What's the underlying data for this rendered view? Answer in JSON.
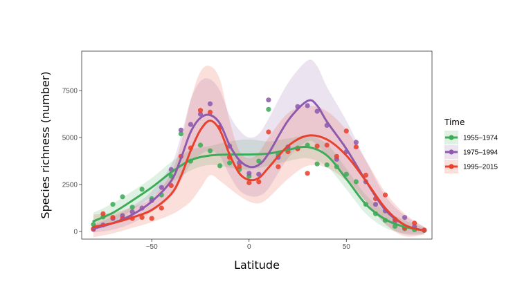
{
  "chart_data": {
    "type": "scatter",
    "title": "",
    "xlabel": "Latitude",
    "ylabel": "Species richness (number)",
    "xlim": [
      -86,
      94
    ],
    "ylim": [
      -400,
      9600
    ],
    "x_ticks": [
      -50,
      0,
      50
    ],
    "x_tick_labels": [
      "−50",
      "0",
      "50"
    ],
    "y_ticks": [
      0,
      2500,
      5000,
      7500
    ],
    "y_tick_labels": [
      "0",
      "2500",
      "5000",
      "7500"
    ],
    "legend": {
      "title": "Time",
      "position": "right"
    },
    "series": [
      {
        "name": "1955–1974",
        "color": "#3cac58",
        "points": [
          [
            -80,
            380
          ],
          [
            -75,
            780
          ],
          [
            -70,
            1450
          ],
          [
            -65,
            1850
          ],
          [
            -60,
            1300
          ],
          [
            -55,
            2250
          ],
          [
            -50,
            1750
          ],
          [
            -45,
            1950
          ],
          [
            -40,
            2950
          ],
          [
            -35,
            5200
          ],
          [
            -30,
            3750
          ],
          [
            -25,
            4600
          ],
          [
            -20,
            4300
          ],
          [
            -15,
            3500
          ],
          [
            -10,
            3650
          ],
          [
            -5,
            3300
          ],
          [
            0,
            2950
          ],
          [
            5,
            3750
          ],
          [
            10,
            6500
          ],
          [
            15,
            4100
          ],
          [
            20,
            4400
          ],
          [
            25,
            4450
          ],
          [
            30,
            4600
          ],
          [
            35,
            3600
          ],
          [
            40,
            3550
          ],
          [
            45,
            3450
          ],
          [
            50,
            3050
          ],
          [
            55,
            2650
          ],
          [
            60,
            1450
          ],
          [
            65,
            950
          ],
          [
            70,
            600
          ],
          [
            75,
            280
          ],
          [
            80,
            150
          ],
          [
            85,
            100
          ],
          [
            90,
            60
          ]
        ],
        "smooth": [
          [
            -80,
            550
          ],
          [
            -70,
            1000
          ],
          [
            -60,
            1650
          ],
          [
            -50,
            2350
          ],
          [
            -40,
            3150
          ],
          [
            -30,
            3800
          ],
          [
            -20,
            4050
          ],
          [
            -10,
            4100
          ],
          [
            0,
            4100
          ],
          [
            10,
            4150
          ],
          [
            20,
            4350
          ],
          [
            30,
            4500
          ],
          [
            40,
            4050
          ],
          [
            50,
            2800
          ],
          [
            60,
            1450
          ],
          [
            70,
            650
          ],
          [
            80,
            250
          ],
          [
            90,
            60
          ]
        ],
        "band_upper": [
          [
            -80,
            1000
          ],
          [
            -70,
            1500
          ],
          [
            -60,
            2150
          ],
          [
            -50,
            2850
          ],
          [
            -40,
            3700
          ],
          [
            -30,
            4350
          ],
          [
            -20,
            4550
          ],
          [
            -10,
            4800
          ],
          [
            0,
            4900
          ],
          [
            10,
            4800
          ],
          [
            20,
            4950
          ],
          [
            30,
            5100
          ],
          [
            40,
            4650
          ],
          [
            50,
            3350
          ],
          [
            60,
            1950
          ],
          [
            70,
            1100
          ],
          [
            80,
            600
          ],
          [
            90,
            200
          ]
        ],
        "band_lower": [
          [
            -80,
            80
          ],
          [
            -70,
            500
          ],
          [
            -60,
            1150
          ],
          [
            -50,
            1850
          ],
          [
            -40,
            2600
          ],
          [
            -30,
            3250
          ],
          [
            -20,
            3550
          ],
          [
            -10,
            3400
          ],
          [
            0,
            3300
          ],
          [
            10,
            3500
          ],
          [
            20,
            3750
          ],
          [
            30,
            3900
          ],
          [
            40,
            3450
          ],
          [
            50,
            2250
          ],
          [
            60,
            950
          ],
          [
            70,
            200
          ],
          [
            80,
            -100
          ],
          [
            90,
            -100
          ]
        ]
      },
      {
        "name": "1975–1994",
        "color": "#8e5aae",
        "points": [
          [
            -80,
            120
          ],
          [
            -75,
            350
          ],
          [
            -70,
            700
          ],
          [
            -65,
            850
          ],
          [
            -60,
            1050
          ],
          [
            -55,
            1250
          ],
          [
            -50,
            1650
          ],
          [
            -45,
            2350
          ],
          [
            -40,
            3300
          ],
          [
            -35,
            5400
          ],
          [
            -30,
            5700
          ],
          [
            -25,
            6250
          ],
          [
            -20,
            6800
          ],
          [
            -15,
            5550
          ],
          [
            -10,
            4550
          ],
          [
            -5,
            3650
          ],
          [
            0,
            3100
          ],
          [
            5,
            3050
          ],
          [
            10,
            7000
          ],
          [
            15,
            3950
          ],
          [
            20,
            4500
          ],
          [
            25,
            6650
          ],
          [
            30,
            6700
          ],
          [
            35,
            6400
          ],
          [
            40,
            5650
          ],
          [
            45,
            3850
          ],
          [
            50,
            4250
          ],
          [
            55,
            4750
          ],
          [
            60,
            2650
          ],
          [
            65,
            1450
          ],
          [
            70,
            1100
          ],
          [
            75,
            550
          ],
          [
            80,
            750
          ],
          [
            85,
            250
          ],
          [
            90,
            70
          ]
        ],
        "smooth": [
          [
            -80,
            150
          ],
          [
            -70,
            450
          ],
          [
            -60,
            900
          ],
          [
            -50,
            1600
          ],
          [
            -40,
            2700
          ],
          [
            -35,
            3900
          ],
          [
            -30,
            5300
          ],
          [
            -25,
            6050
          ],
          [
            -20,
            6200
          ],
          [
            -15,
            5750
          ],
          [
            -10,
            4600
          ],
          [
            -5,
            3800
          ],
          [
            0,
            3450
          ],
          [
            5,
            3550
          ],
          [
            10,
            4150
          ],
          [
            20,
            5900
          ],
          [
            30,
            6950
          ],
          [
            35,
            6700
          ],
          [
            40,
            5850
          ],
          [
            50,
            4400
          ],
          [
            60,
            2700
          ],
          [
            70,
            1150
          ],
          [
            80,
            350
          ],
          [
            90,
            50
          ]
        ],
        "band_upper": [
          [
            -80,
            350
          ],
          [
            -70,
            800
          ],
          [
            -60,
            1350
          ],
          [
            -50,
            2150
          ],
          [
            -40,
            3550
          ],
          [
            -35,
            5100
          ],
          [
            -30,
            7000
          ],
          [
            -25,
            8000
          ],
          [
            -20,
            8100
          ],
          [
            -15,
            7500
          ],
          [
            -10,
            6200
          ],
          [
            -5,
            5400
          ],
          [
            0,
            5000
          ],
          [
            5,
            5200
          ],
          [
            10,
            6000
          ],
          [
            20,
            7900
          ],
          [
            30,
            9100
          ],
          [
            35,
            8800
          ],
          [
            40,
            7700
          ],
          [
            50,
            5900
          ],
          [
            60,
            3800
          ],
          [
            70,
            1900
          ],
          [
            80,
            850
          ],
          [
            90,
            250
          ]
        ],
        "band_lower": [
          [
            -80,
            -50
          ],
          [
            -70,
            100
          ],
          [
            -60,
            450
          ],
          [
            -50,
            1050
          ],
          [
            -40,
            1850
          ],
          [
            -35,
            2700
          ],
          [
            -30,
            3600
          ],
          [
            -25,
            4100
          ],
          [
            -20,
            4300
          ],
          [
            -15,
            4000
          ],
          [
            -10,
            3000
          ],
          [
            -5,
            2200
          ],
          [
            0,
            1900
          ],
          [
            5,
            1900
          ],
          [
            10,
            2300
          ],
          [
            20,
            3900
          ],
          [
            30,
            4800
          ],
          [
            35,
            4600
          ],
          [
            40,
            4000
          ],
          [
            50,
            2900
          ],
          [
            60,
            1600
          ],
          [
            70,
            400
          ],
          [
            80,
            -150
          ],
          [
            90,
            -150
          ]
        ]
      },
      {
        "name": "1995–2015",
        "color": "#e8412c",
        "points": [
          [
            -80,
            150
          ],
          [
            -75,
            950
          ],
          [
            -70,
            750
          ],
          [
            -65,
            700
          ],
          [
            -60,
            700
          ],
          [
            -55,
            750
          ],
          [
            -50,
            700
          ],
          [
            -45,
            1250
          ],
          [
            -40,
            2450
          ],
          [
            -35,
            4000
          ],
          [
            -30,
            4450
          ],
          [
            -25,
            6450
          ],
          [
            -20,
            6350
          ],
          [
            -15,
            5550
          ],
          [
            -10,
            3950
          ],
          [
            -5,
            3450
          ],
          [
            0,
            2600
          ],
          [
            5,
            2650
          ],
          [
            10,
            5300
          ],
          [
            15,
            3450
          ],
          [
            20,
            4250
          ],
          [
            25,
            4400
          ],
          [
            30,
            3100
          ],
          [
            35,
            4550
          ],
          [
            40,
            4600
          ],
          [
            45,
            4000
          ],
          [
            50,
            5350
          ],
          [
            55,
            4500
          ],
          [
            60,
            3000
          ],
          [
            65,
            1750
          ],
          [
            70,
            1950
          ],
          [
            75,
            650
          ],
          [
            80,
            200
          ],
          [
            85,
            450
          ],
          [
            90,
            80
          ]
        ],
        "smooth": [
          [
            -80,
            250
          ],
          [
            -70,
            450
          ],
          [
            -60,
            750
          ],
          [
            -50,
            1150
          ],
          [
            -40,
            2000
          ],
          [
            -35,
            2950
          ],
          [
            -30,
            4300
          ],
          [
            -25,
            5400
          ],
          [
            -20,
            5900
          ],
          [
            -15,
            5400
          ],
          [
            -10,
            4100
          ],
          [
            -5,
            3100
          ],
          [
            0,
            2750
          ],
          [
            5,
            2850
          ],
          [
            10,
            3400
          ],
          [
            20,
            4550
          ],
          [
            30,
            5100
          ],
          [
            40,
            4900
          ],
          [
            50,
            4050
          ],
          [
            60,
            2700
          ],
          [
            70,
            1250
          ],
          [
            80,
            350
          ],
          [
            90,
            50
          ]
        ],
        "band_upper": [
          [
            -80,
            900
          ],
          [
            -70,
            1000
          ],
          [
            -60,
            1300
          ],
          [
            -50,
            1800
          ],
          [
            -40,
            3100
          ],
          [
            -35,
            4700
          ],
          [
            -30,
            7000
          ],
          [
            -25,
            8500
          ],
          [
            -20,
            8800
          ],
          [
            -15,
            8100
          ],
          [
            -10,
            5900
          ],
          [
            -5,
            4300
          ],
          [
            0,
            3900
          ],
          [
            5,
            4200
          ],
          [
            10,
            5000
          ],
          [
            20,
            6300
          ],
          [
            30,
            6700
          ],
          [
            40,
            6400
          ],
          [
            50,
            5400
          ],
          [
            60,
            3800
          ],
          [
            70,
            2100
          ],
          [
            80,
            950
          ],
          [
            90,
            250
          ]
        ],
        "band_lower": [
          [
            -80,
            -300
          ],
          [
            -70,
            -100
          ],
          [
            -60,
            200
          ],
          [
            -50,
            500
          ],
          [
            -40,
            900
          ],
          [
            -35,
            1200
          ],
          [
            -30,
            1600
          ],
          [
            -25,
            2300
          ],
          [
            -20,
            3000
          ],
          [
            -15,
            2700
          ],
          [
            -10,
            2300
          ],
          [
            -5,
            1900
          ],
          [
            0,
            1600
          ],
          [
            5,
            1500
          ],
          [
            10,
            1800
          ],
          [
            20,
            2800
          ],
          [
            30,
            3500
          ],
          [
            40,
            3400
          ],
          [
            50,
            2700
          ],
          [
            60,
            1600
          ],
          [
            70,
            400
          ],
          [
            80,
            -250
          ],
          [
            90,
            -150
          ]
        ]
      }
    ]
  }
}
